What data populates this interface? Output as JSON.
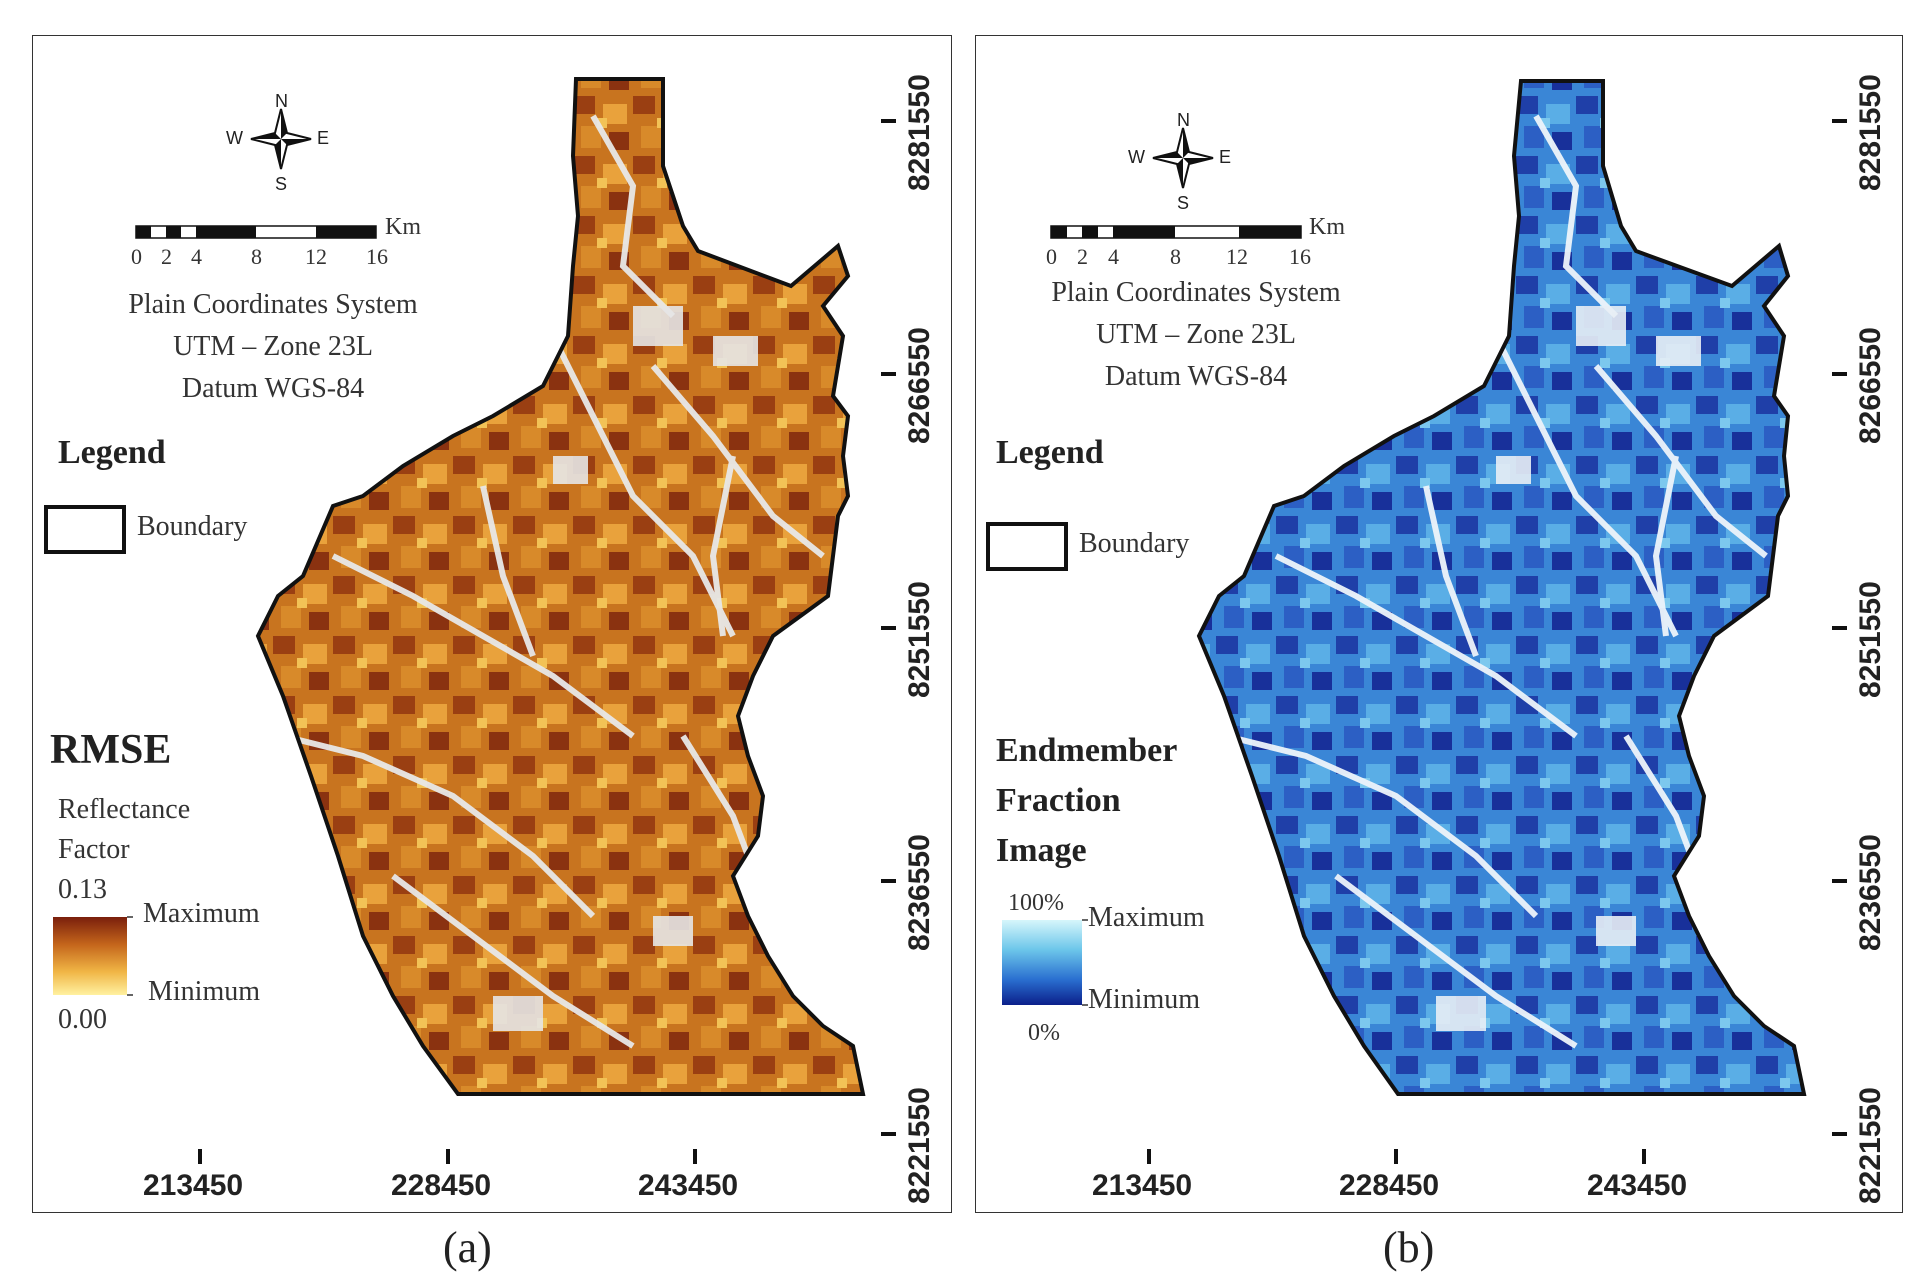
{
  "panels": [
    {
      "id": "a",
      "caption": "(a)",
      "compass": {
        "n": "N",
        "s": "S",
        "e": "E",
        "w": "W"
      },
      "scalebar": {
        "unit": "Km",
        "ticks": [
          "0",
          "2",
          "4",
          "8",
          "12",
          "16"
        ]
      },
      "coord_lines": [
        "Plain Coordinates System",
        "UTM – Zone 23L",
        "Datum WGS-84"
      ],
      "legend_title": "Legend",
      "boundary_label": "Boundary",
      "product_title": "RMSE",
      "units_lines": [
        "Reflectance",
        "Factor"
      ],
      "ramp_max_value": "0.13",
      "ramp_min_value": "0.00",
      "ramp_max_label": "Maximum",
      "ramp_min_label": "Minimum",
      "ramp_colors": [
        "#7a1f0c",
        "#c4651b",
        "#f0b545",
        "#fff1a0"
      ],
      "x_ticks": [
        "213450",
        "228450",
        "243450"
      ],
      "y_ticks": [
        "8281550",
        "8266550",
        "8251550",
        "8236550",
        "8221550"
      ]
    },
    {
      "id": "b",
      "caption": "(b)",
      "compass": {
        "n": "N",
        "s": "S",
        "e": "E",
        "w": "W"
      },
      "scalebar": {
        "unit": "Km",
        "ticks": [
          "0",
          "2",
          "4",
          "8",
          "12",
          "16"
        ]
      },
      "coord_lines": [
        "Plain Coordinates System",
        "UTM – Zone 23L",
        "Datum WGS-84"
      ],
      "legend_title": "Legend",
      "boundary_label": "Boundary",
      "product_title_lines": [
        "Endmember",
        "Fraction",
        "Image"
      ],
      "ramp_max_value": "100%",
      "ramp_min_value": "0%",
      "ramp_max_label": "Maximum",
      "ramp_min_label": "Minimum",
      "ramp_colors": [
        "#d6f6fb",
        "#6cc6ea",
        "#2a6fd0",
        "#0b1f8a"
      ],
      "x_ticks": [
        "213450",
        "228450",
        "243450"
      ],
      "y_ticks": [
        "8281550",
        "8266550",
        "8251550",
        "8236550",
        "8221550"
      ]
    }
  ]
}
